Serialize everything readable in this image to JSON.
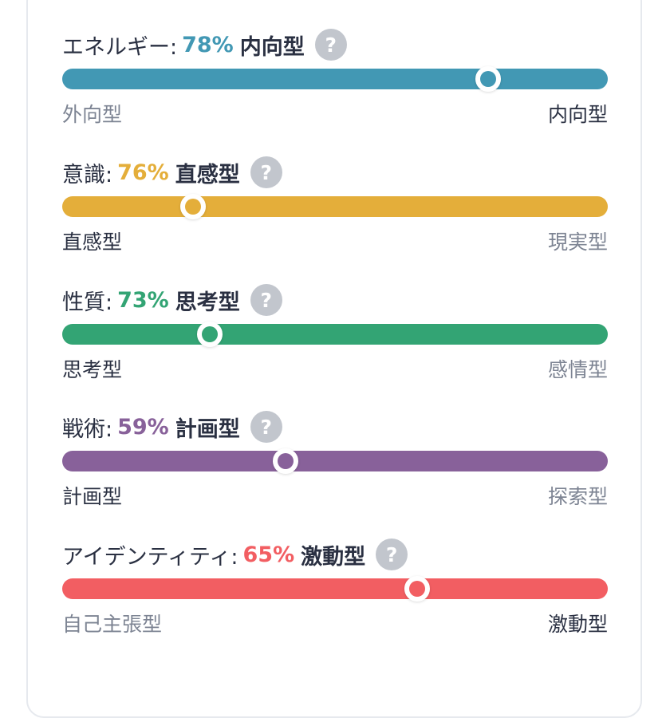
{
  "traits": [
    {
      "label": "エネルギー:",
      "percent": "78%",
      "result": "内向型",
      "color": "#4298b4",
      "knob_position": 0.78,
      "left_pole": "外向型",
      "right_pole": "内向型",
      "active_side": "right",
      "help_icon": "question-icon"
    },
    {
      "label": "意識:",
      "percent": "76%",
      "result": "直感型",
      "color": "#e4ae3a",
      "knob_position": 0.24,
      "left_pole": "直感型",
      "right_pole": "現実型",
      "active_side": "left",
      "help_icon": "question-icon"
    },
    {
      "label": "性質:",
      "percent": "73%",
      "result": "思考型",
      "color": "#33a474",
      "knob_position": 0.27,
      "left_pole": "思考型",
      "right_pole": "感情型",
      "active_side": "left",
      "help_icon": "question-icon"
    },
    {
      "label": "戦術:",
      "percent": "59%",
      "result": "計画型",
      "color": "#88619a",
      "knob_position": 0.41,
      "left_pole": "計画型",
      "right_pole": "探索型",
      "active_side": "left",
      "help_icon": "question-icon"
    },
    {
      "label": "アイデンティティ:",
      "percent": "65%",
      "result": "激動型",
      "color": "#f25e62",
      "knob_position": 0.65,
      "left_pole": "自己主張型",
      "right_pole": "激動型",
      "active_side": "right",
      "help_icon": "question-icon"
    }
  ],
  "help_glyph": "?"
}
